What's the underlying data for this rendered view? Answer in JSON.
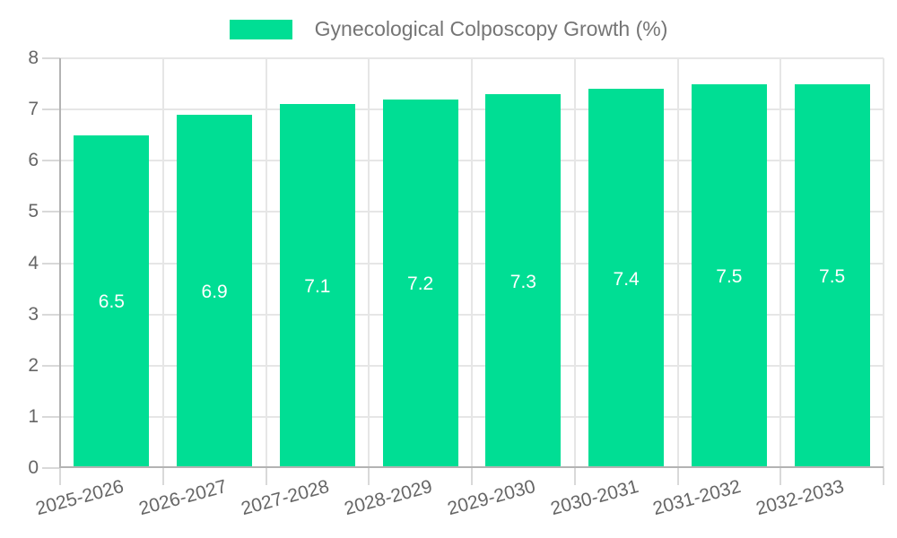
{
  "chart_data": {
    "type": "bar",
    "title": "Gynecological Colposcopy Growth (%)",
    "legend": {
      "position": "top",
      "label": "Gynecological Colposcopy Growth (%)"
    },
    "categories": [
      "2025-2026",
      "2026-2027",
      "2027-2028",
      "2028-2029",
      "2029-2030",
      "2030-2031",
      "2031-2032",
      "2032-2033"
    ],
    "values": [
      6.5,
      6.9,
      7.1,
      7.2,
      7.3,
      7.4,
      7.5,
      7.5
    ],
    "value_labels": [
      "6.5",
      "6.9",
      "7.1",
      "7.2",
      "7.3",
      "7.4",
      "7.5",
      "7.5"
    ],
    "xlabel": "",
    "ylabel": "",
    "ylim": [
      0,
      8
    ],
    "yticks": [
      0,
      1,
      2,
      3,
      4,
      5,
      6,
      7,
      8
    ],
    "grid": true,
    "bar_color": "#00DE94",
    "value_label_color": "#FFFFFF"
  },
  "colors": {
    "background": "#FFFFFF",
    "grid_line": "#E6E6E6",
    "axis_line": "#B3B3B3",
    "tick_mark": "#D9D9D9",
    "axis_label_text": "#666666",
    "legend_text": "#757575"
  }
}
